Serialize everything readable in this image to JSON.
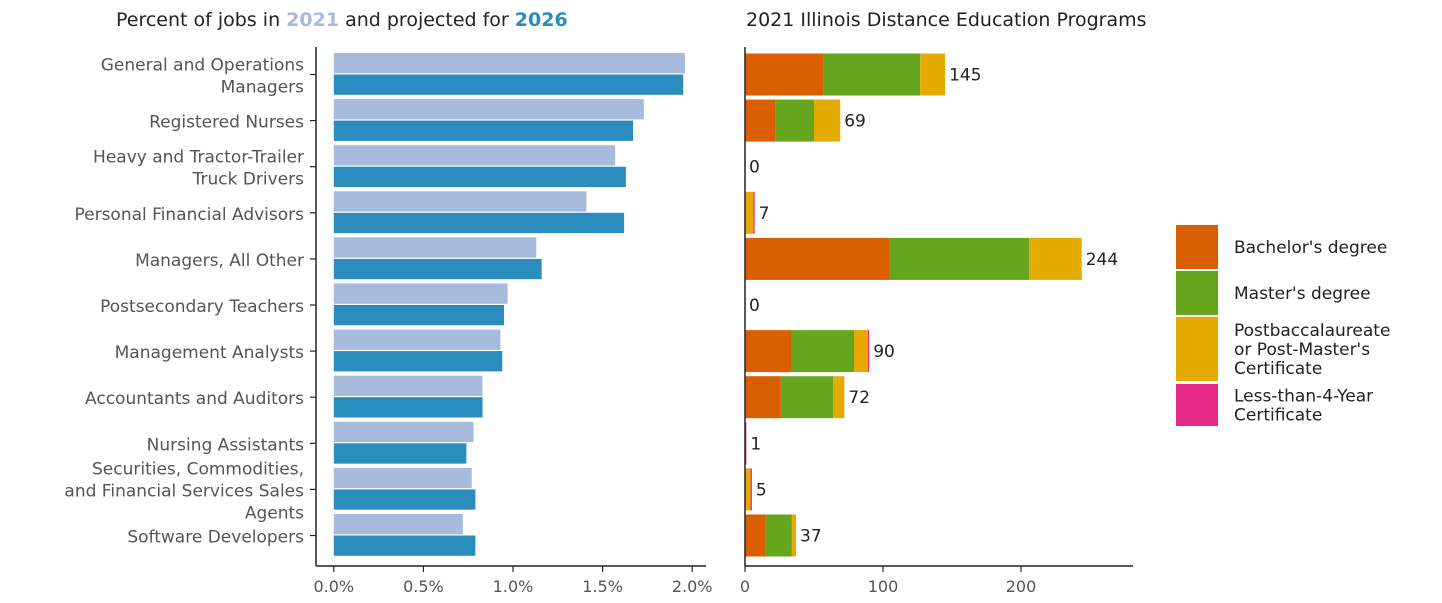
{
  "chart_data": [
    {
      "type": "bar",
      "orientation": "horizontal",
      "title_parts": [
        "Percent  of jobs in ",
        "2021",
        " and projected for ",
        "2026"
      ],
      "title_colors": [
        "#222222",
        "#a7bcdc",
        "#222222",
        "#2b8cbe"
      ],
      "categories": [
        "General and Operations Managers",
        "Registered Nurses",
        "Heavy and Tractor-Trailer Truck Drivers",
        "Personal Financial Advisors",
        "Managers, All Other",
        "Postsecondary Teachers",
        "Management Analysts",
        "Accountants and Auditors",
        "Nursing Assistants",
        "Securities, Commodities, and Financial Services Sales Agents",
        "Software Developers"
      ],
      "category_lines": [
        [
          "General and Operations",
          "Managers"
        ],
        [
          "Registered Nurses"
        ],
        [
          "Heavy and Tractor-Trailer",
          "Truck Drivers"
        ],
        [
          "Personal Financial Advisors"
        ],
        [
          "Managers, All Other"
        ],
        [
          "Postsecondary Teachers"
        ],
        [
          "Management Analysts"
        ],
        [
          "Accountants and Auditors"
        ],
        [
          "Nursing Assistants"
        ],
        [
          "Securities, Commodities,",
          "and Financial Services Sales",
          "Agents"
        ],
        [
          "Software Developers"
        ]
      ],
      "series": [
        {
          "year": "2021",
          "color": "#a7bcdc",
          "values": [
            1.96,
            1.73,
            1.57,
            1.41,
            1.13,
            0.97,
            0.93,
            0.83,
            0.78,
            0.77,
            0.72
          ]
        },
        {
          "year": "2026",
          "color": "#2b8cbe",
          "values": [
            1.95,
            1.67,
            1.63,
            1.62,
            1.16,
            0.95,
            0.94,
            0.83,
            0.74,
            0.79,
            0.79
          ]
        }
      ],
      "xticks": [
        "0.0%",
        "0.5%",
        "1.0%",
        "1.5%",
        "2.0%"
      ],
      "xtick_values": [
        0,
        0.5,
        1.0,
        1.5,
        2.0
      ],
      "xlim": [
        -0.08,
        2.05
      ]
    },
    {
      "type": "bar",
      "orientation": "horizontal",
      "stacked": true,
      "title": "2021 Illinois Distance Education Programs",
      "categories": [
        "General and Operations Managers",
        "Registered Nurses",
        "Heavy and Tractor-Trailer Truck Drivers",
        "Personal Financial Advisors",
        "Managers, All Other",
        "Postsecondary Teachers",
        "Management Analysts",
        "Accountants and Auditors",
        "Nursing Assistants",
        "Securities, Commodities, and Financial Services Sales Agents",
        "Software Developers"
      ],
      "series": [
        {
          "name": "Bachelor's degree",
          "color": "#d95f02",
          "values": [
            57,
            22,
            0,
            0,
            105,
            0,
            34,
            26,
            0,
            0,
            15
          ]
        },
        {
          "name": "Master's degree",
          "color": "#66a61e",
          "values": [
            70,
            28,
            0,
            0,
            101,
            0,
            45,
            38,
            0,
            0,
            19
          ]
        },
        {
          "name": "Postbaccalaureate or Post-Master's Certificate",
          "color": "#e6ab02",
          "values": [
            18,
            19,
            0,
            6,
            38,
            0,
            10,
            8,
            0,
            4,
            3
          ]
        },
        {
          "name": "Less-than-4-Year Certificate",
          "color": "#e7298a",
          "values": [
            0,
            0,
            0,
            1,
            0,
            0,
            1,
            0,
            1,
            1,
            0
          ]
        }
      ],
      "totals": [
        "145",
        "69",
        "0",
        "7",
        "244",
        "0",
        "90",
        "72",
        "1",
        "5",
        "37"
      ],
      "xticks": [
        "0",
        "100",
        "200"
      ],
      "xtick_values": [
        0,
        100,
        200
      ],
      "xlim": [
        0,
        280
      ],
      "legend": {
        "placement": "right",
        "items": [
          {
            "lines": [
              "Bachelor's degree"
            ],
            "color": "#d95f02"
          },
          {
            "lines": [
              "Master's degree"
            ],
            "color": "#66a61e"
          },
          {
            "lines": [
              "Postbaccalaureate",
              "or Post-Master's",
              "Certificate"
            ],
            "color": "#e6ab02"
          },
          {
            "lines": [
              "Less-than-4-Year",
              "Certificate"
            ],
            "color": "#e7298a"
          }
        ]
      }
    }
  ]
}
